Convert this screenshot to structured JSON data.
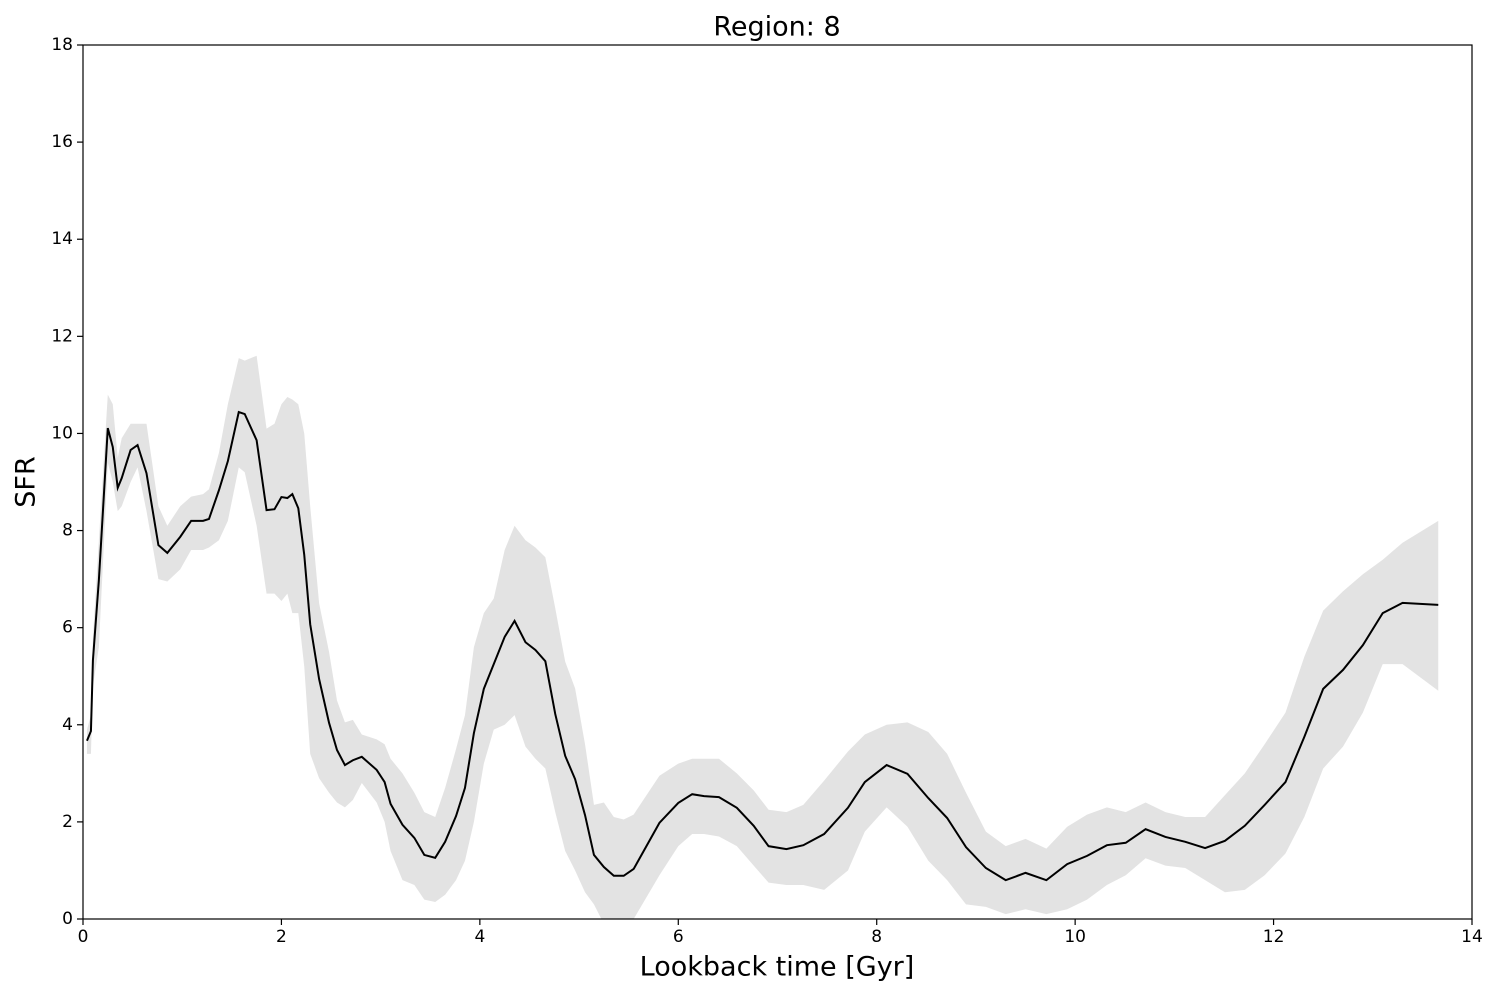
{
  "chart_data": {
    "type": "line",
    "title": "Region: 8",
    "xlabel": "Lookback time [Gyr]",
    "ylabel": "SFR",
    "color": "#000000",
    "band_color": "#e3e3e3",
    "x": [
      0.04,
      0.08,
      0.1,
      0.16,
      0.25,
      0.3,
      0.35,
      0.39,
      0.48,
      0.55,
      0.64,
      0.76,
      0.85,
      0.98,
      1.09,
      1.21,
      1.27,
      1.37,
      1.46,
      1.57,
      1.63,
      1.75,
      1.85,
      1.93,
      2.0,
      2.06,
      2.11,
      2.17,
      2.23,
      2.29,
      2.38,
      2.48,
      2.56,
      2.64,
      2.72,
      2.81,
      2.96,
      3.04,
      3.1,
      3.22,
      3.34,
      3.44,
      3.55,
      3.65,
      3.76,
      3.85,
      3.94,
      4.04,
      4.14,
      4.25,
      4.35,
      4.46,
      4.56,
      4.66,
      4.76,
      4.86,
      4.96,
      5.06,
      5.15,
      5.25,
      5.35,
      5.45,
      5.55,
      5.81,
      6.0,
      6.14,
      6.26,
      6.41,
      6.59,
      6.76,
      6.91,
      7.09,
      7.26,
      7.47,
      7.71,
      7.88,
      8.1,
      8.31,
      8.52,
      8.71,
      8.9,
      9.1,
      9.3,
      9.5,
      9.71,
      9.92,
      10.12,
      10.32,
      10.51,
      10.71,
      10.91,
      11.11,
      11.31,
      11.51,
      11.71,
      11.91,
      12.12,
      12.31,
      12.5,
      12.7,
      12.9,
      13.1,
      13.3,
      13.66
    ],
    "values": [
      3.67,
      3.87,
      5.33,
      6.98,
      10.11,
      9.72,
      8.88,
      9.08,
      9.66,
      9.76,
      9.18,
      7.7,
      7.54,
      7.87,
      8.2,
      8.2,
      8.24,
      8.83,
      9.43,
      10.44,
      10.4,
      9.86,
      8.42,
      8.44,
      8.69,
      8.67,
      8.75,
      8.46,
      7.5,
      6.07,
      4.94,
      4.04,
      3.48,
      3.17,
      3.27,
      3.34,
      3.07,
      2.82,
      2.37,
      1.94,
      1.67,
      1.32,
      1.26,
      1.59,
      2.12,
      2.7,
      3.83,
      4.74,
      5.25,
      5.81,
      6.14,
      5.7,
      5.54,
      5.31,
      4.22,
      3.36,
      2.88,
      2.14,
      1.32,
      1.07,
      0.89,
      0.89,
      1.03,
      1.98,
      2.39,
      2.57,
      2.53,
      2.51,
      2.29,
      1.92,
      1.5,
      1.44,
      1.52,
      1.75,
      2.29,
      2.82,
      3.17,
      2.99,
      2.49,
      2.08,
      1.48,
      1.05,
      0.8,
      0.95,
      0.8,
      1.13,
      1.3,
      1.52,
      1.57,
      1.85,
      1.69,
      1.59,
      1.46,
      1.61,
      1.92,
      2.35,
      2.82,
      3.75,
      4.74,
      5.13,
      5.64,
      6.3,
      6.51,
      6.47
    ],
    "lower": [
      3.4,
      3.4,
      4.8,
      5.6,
      9.4,
      9.0,
      8.4,
      8.5,
      9.0,
      9.3,
      8.4,
      7.0,
      6.95,
      7.2,
      7.6,
      7.6,
      7.65,
      7.8,
      8.2,
      9.3,
      9.2,
      8.1,
      6.7,
      6.7,
      6.55,
      6.7,
      6.3,
      6.3,
      5.2,
      3.4,
      2.9,
      2.6,
      2.4,
      2.3,
      2.45,
      2.8,
      2.4,
      2.0,
      1.4,
      0.8,
      0.7,
      0.4,
      0.35,
      0.5,
      0.8,
      1.2,
      2.0,
      3.2,
      3.9,
      4.0,
      4.2,
      3.55,
      3.3,
      3.1,
      2.2,
      1.4,
      1.0,
      0.55,
      0.3,
      -0.1,
      -0.2,
      -0.2,
      0.0,
      0.9,
      1.5,
      1.75,
      1.75,
      1.7,
      1.5,
      1.1,
      0.75,
      0.7,
      0.7,
      0.6,
      1.0,
      1.8,
      2.3,
      1.9,
      1.2,
      0.8,
      0.3,
      0.25,
      0.1,
      0.2,
      0.1,
      0.2,
      0.4,
      0.7,
      0.9,
      1.25,
      1.1,
      1.05,
      0.8,
      0.55,
      0.6,
      0.9,
      1.35,
      2.1,
      3.1,
      3.55,
      4.25,
      5.25,
      5.25,
      4.7
    ],
    "upper": [
      3.9,
      4.2,
      5.8,
      7.8,
      10.8,
      10.6,
      9.5,
      9.9,
      10.2,
      10.2,
      10.2,
      8.5,
      8.1,
      8.5,
      8.7,
      8.75,
      8.85,
      9.6,
      10.6,
      11.55,
      11.5,
      11.6,
      10.1,
      10.2,
      10.6,
      10.75,
      10.7,
      10.6,
      10.0,
      8.5,
      6.5,
      5.5,
      4.5,
      4.05,
      4.1,
      3.8,
      3.7,
      3.6,
      3.3,
      3.0,
      2.6,
      2.2,
      2.1,
      2.7,
      3.5,
      4.2,
      5.6,
      6.3,
      6.6,
      7.6,
      8.1,
      7.8,
      7.65,
      7.45,
      6.4,
      5.3,
      4.75,
      3.6,
      2.35,
      2.4,
      2.1,
      2.05,
      2.15,
      2.95,
      3.2,
      3.3,
      3.3,
      3.3,
      3.0,
      2.65,
      2.25,
      2.2,
      2.35,
      2.85,
      3.45,
      3.8,
      4.0,
      4.05,
      3.85,
      3.4,
      2.6,
      1.8,
      1.5,
      1.65,
      1.45,
      1.9,
      2.15,
      2.3,
      2.2,
      2.4,
      2.2,
      2.1,
      2.1,
      2.55,
      3.0,
      3.6,
      4.25,
      5.4,
      6.35,
      6.75,
      7.1,
      7.4,
      7.75,
      8.2
    ],
    "xlim": [
      0,
      14
    ],
    "ylim": [
      0,
      18
    ],
    "xticks": [
      0,
      2,
      4,
      6,
      8,
      10,
      12,
      14
    ],
    "yticks": [
      0,
      2,
      4,
      6,
      8,
      10,
      12,
      14,
      16,
      18
    ]
  }
}
